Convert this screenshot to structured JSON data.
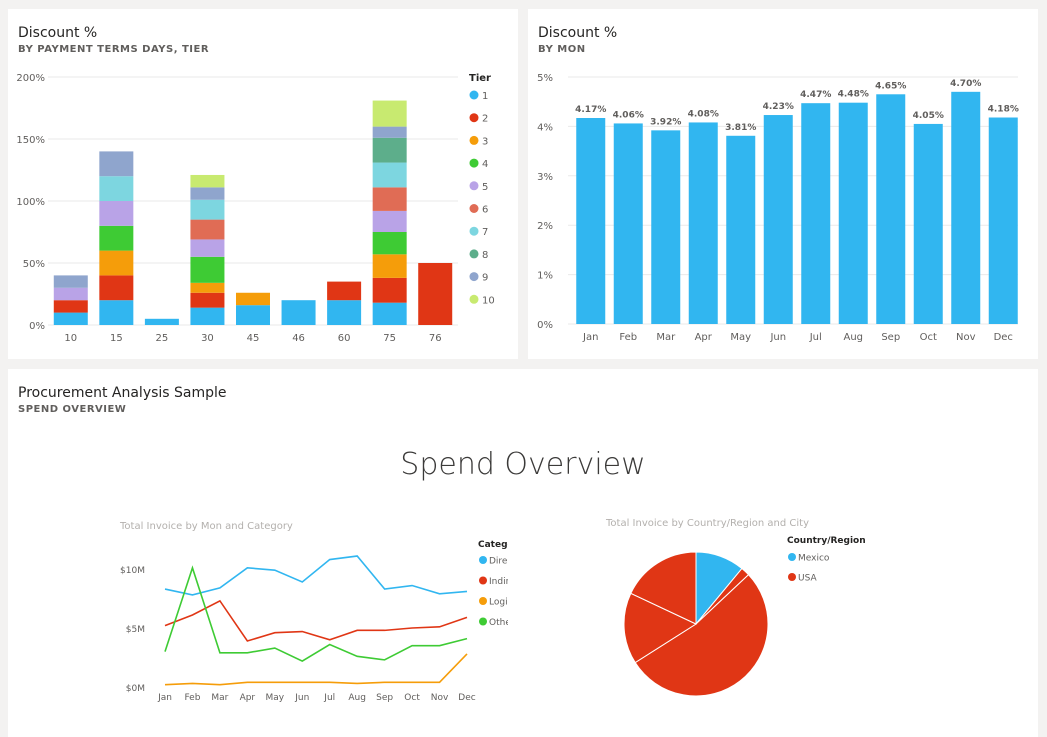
{
  "tiles": {
    "tile1": {
      "title": "Discount %",
      "subtitle": "BY PAYMENT TERMS DAYS, TIER"
    },
    "tile2": {
      "title": "Discount %",
      "subtitle": "BY MON"
    },
    "tile3": {
      "title": "Procurement Analysis Sample",
      "subtitle": "SPEND OVERVIEW",
      "report_title": "Spend Overview"
    }
  },
  "colors": {
    "tiers": [
      "#31b6f0",
      "#e03615",
      "#f59d0a",
      "#3ecb34",
      "#b9a3e7",
      "#e06c55",
      "#7dd6e0",
      "#5dae8b",
      "#8fa5cd",
      "#c8ea70"
    ],
    "bar_blue": "#31b6f0",
    "line_direct": "#31b6f0",
    "line_indirect": "#e03615",
    "line_logistics": "#f59d0a",
    "line_other": "#3ecb34",
    "pie_mexico": "#31b6f0",
    "pie_usa": "#e03615"
  },
  "chart_data": [
    {
      "type": "bar",
      "stacked": true,
      "title": "Discount %",
      "subtitle": "BY PAYMENT TERMS DAYS, TIER",
      "categories": [
        "10",
        "15",
        "25",
        "30",
        "45",
        "46",
        "60",
        "75",
        "76"
      ],
      "yticks": [
        "0%",
        "50%",
        "100%",
        "150%",
        "200%"
      ],
      "ylim": [
        0,
        200
      ],
      "legend_title": "Tier",
      "legend_position": "right",
      "series": [
        {
          "name": "1",
          "values": [
            10,
            20,
            5,
            14,
            16,
            20,
            20,
            18,
            0
          ]
        },
        {
          "name": "2",
          "values": [
            10,
            20,
            0,
            12,
            0,
            0,
            15,
            20,
            50
          ]
        },
        {
          "name": "3",
          "values": [
            0,
            20,
            0,
            8,
            10,
            0,
            0,
            19,
            0
          ]
        },
        {
          "name": "4",
          "values": [
            0,
            20,
            0,
            21,
            0,
            0,
            0,
            18,
            0
          ]
        },
        {
          "name": "5",
          "values": [
            10,
            20,
            0,
            14,
            0,
            0,
            0,
            17,
            0
          ]
        },
        {
          "name": "6",
          "values": [
            0,
            0,
            0,
            16,
            0,
            0,
            0,
            19,
            0
          ]
        },
        {
          "name": "7",
          "values": [
            0,
            20,
            0,
            16,
            0,
            0,
            0,
            20,
            0
          ]
        },
        {
          "name": "8",
          "values": [
            0,
            0,
            0,
            0,
            0,
            0,
            0,
            20,
            0
          ]
        },
        {
          "name": "9",
          "values": [
            10,
            20,
            0,
            10,
            0,
            0,
            0,
            9,
            0
          ]
        },
        {
          "name": "10",
          "values": [
            0,
            0,
            0,
            10,
            0,
            0,
            0,
            21,
            0
          ]
        }
      ]
    },
    {
      "type": "bar",
      "title": "Discount %",
      "subtitle": "BY MON",
      "categories": [
        "Jan",
        "Feb",
        "Mar",
        "Apr",
        "May",
        "Jun",
        "Jul",
        "Aug",
        "Sep",
        "Oct",
        "Nov",
        "Dec"
      ],
      "values": [
        4.17,
        4.06,
        3.92,
        4.08,
        3.81,
        4.23,
        4.47,
        4.48,
        4.65,
        4.05,
        4.7,
        4.18
      ],
      "data_labels": [
        "4.17%",
        "4.06%",
        "3.92%",
        "4.08%",
        "3.81%",
        "4.23%",
        "4.47%",
        "4.48%",
        "4.65%",
        "4.05%",
        "4.70%",
        "4.18%"
      ],
      "yticks": [
        "0%",
        "1%",
        "2%",
        "3%",
        "4%",
        "5%"
      ],
      "ylim": [
        0,
        5
      ]
    },
    {
      "type": "line",
      "title": "Total Invoice by Mon and Category",
      "categories": [
        "Jan",
        "Feb",
        "Mar",
        "Apr",
        "May",
        "Jun",
        "Jul",
        "Aug",
        "Sep",
        "Oct",
        "Nov",
        "Dec"
      ],
      "yticks": [
        "$0M",
        "$5M",
        "$10M"
      ],
      "ylim": [
        0,
        10
      ],
      "legend_title": "Category",
      "legend_position": "right",
      "series": [
        {
          "name": "Direct",
          "values": [
            8.3,
            7.8,
            8.4,
            10.1,
            9.9,
            8.9,
            10.8,
            11.1,
            8.3,
            8.6,
            7.9,
            8.1
          ]
        },
        {
          "name": "Indirect",
          "values": [
            5.2,
            6.1,
            7.3,
            3.9,
            4.6,
            4.7,
            4.0,
            4.8,
            4.8,
            5.0,
            5.1,
            5.9
          ]
        },
        {
          "name": "Logistics",
          "values": [
            0.2,
            0.3,
            0.2,
            0.4,
            0.4,
            0.4,
            0.4,
            0.3,
            0.4,
            0.4,
            0.4,
            2.8
          ]
        },
        {
          "name": "Other",
          "values": [
            3.0,
            10.1,
            2.9,
            2.9,
            3.3,
            2.2,
            3.6,
            2.6,
            2.3,
            3.5,
            3.5,
            4.1
          ]
        }
      ]
    },
    {
      "type": "pie",
      "title": "Total Invoice by Country/Region and City",
      "legend_title": "Country/Region",
      "legend_position": "top-right",
      "legend": [
        "Mexico",
        "USA"
      ],
      "slices": [
        {
          "name": "Mexico",
          "value": 11
        },
        {
          "name": "USA",
          "value": 2
        },
        {
          "name": "USA",
          "value": 53
        },
        {
          "name": "USA",
          "value": 16
        },
        {
          "name": "USA",
          "value": 18
        }
      ]
    }
  ]
}
